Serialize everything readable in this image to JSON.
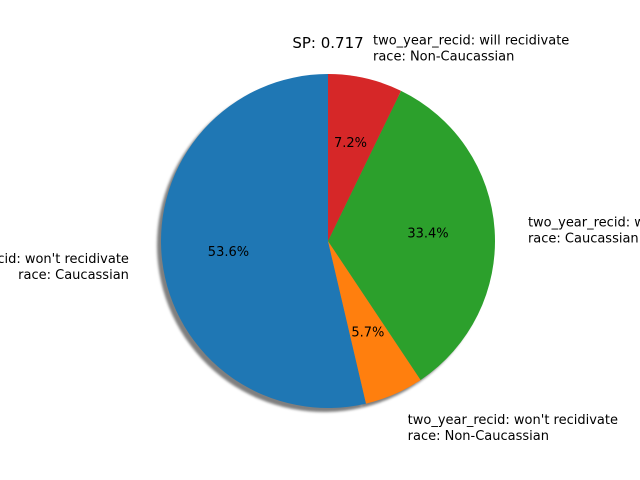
{
  "chart_data": {
    "type": "pie",
    "title": "SP: 0.717",
    "start_angle_deg": 90,
    "direction": "counterclockwise",
    "shadow": true,
    "slices": [
      {
        "label_line1": "two_year_recid: won't recidivate",
        "label_line2": "race: Caucassian",
        "value": 53.6,
        "pct_text": "53.6%",
        "color": "#1f77b4"
      },
      {
        "label_line1": "two_year_recid: won't recidivate",
        "label_line2": "race: Non-Caucassian",
        "value": 5.7,
        "pct_text": "5.7%",
        "color": "#ff7f0e"
      },
      {
        "label_line1": "two_year_recid: will recidivate",
        "label_line2": "race: Caucassian",
        "value": 33.4,
        "pct_text": "33.4%",
        "color": "#2ca02c"
      },
      {
        "label_line1": "two_year_recid: will recidivate",
        "label_line2": "race: Non-Caucassian",
        "value": 7.2,
        "pct_text": "7.2%",
        "color": "#d62728"
      }
    ]
  }
}
